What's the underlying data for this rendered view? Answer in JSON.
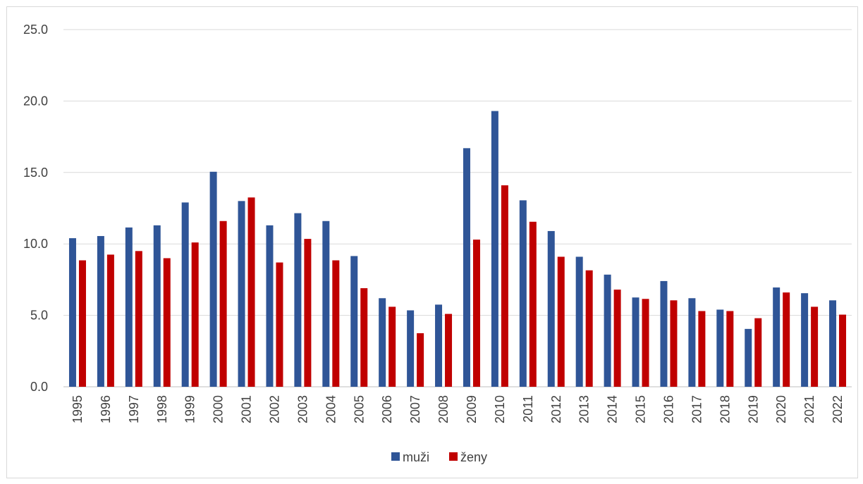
{
  "chart_data": {
    "type": "bar",
    "categories": [
      "1995",
      "1996",
      "1997",
      "1998",
      "1999",
      "2000",
      "2001",
      "2002",
      "2003",
      "2004",
      "2005",
      "2006",
      "2007",
      "2008",
      "2009",
      "2010",
      "2011",
      "2012",
      "2013",
      "2014",
      "2015",
      "2016",
      "2017",
      "2018",
      "2019",
      "2020",
      "2021",
      "2022"
    ],
    "series": [
      {
        "name": "muži",
        "color": "#2f5597",
        "values": [
          10.4,
          10.55,
          11.15,
          11.3,
          12.9,
          15.05,
          13.0,
          11.3,
          12.15,
          11.6,
          9.15,
          6.2,
          5.35,
          5.75,
          16.7,
          19.3,
          13.05,
          10.9,
          9.1,
          7.85,
          6.25,
          7.4,
          6.2,
          5.4,
          4.05,
          6.95,
          6.55,
          6.05
        ]
      },
      {
        "name": "ženy",
        "color": "#c00000",
        "values": [
          8.85,
          9.25,
          9.5,
          9.0,
          10.1,
          11.6,
          13.25,
          8.7,
          10.35,
          8.85,
          6.9,
          5.6,
          3.75,
          5.1,
          10.3,
          14.1,
          11.55,
          9.1,
          8.15,
          6.8,
          6.15,
          6.05,
          5.3,
          5.3,
          4.8,
          6.6,
          5.6,
          5.05
        ]
      }
    ],
    "yticks": [
      "0.0",
      "5.0",
      "10.0",
      "15.0",
      "20.0",
      "25.0"
    ],
    "ylim": [
      0,
      25
    ],
    "grid": true,
    "legend": "bottom-center"
  }
}
